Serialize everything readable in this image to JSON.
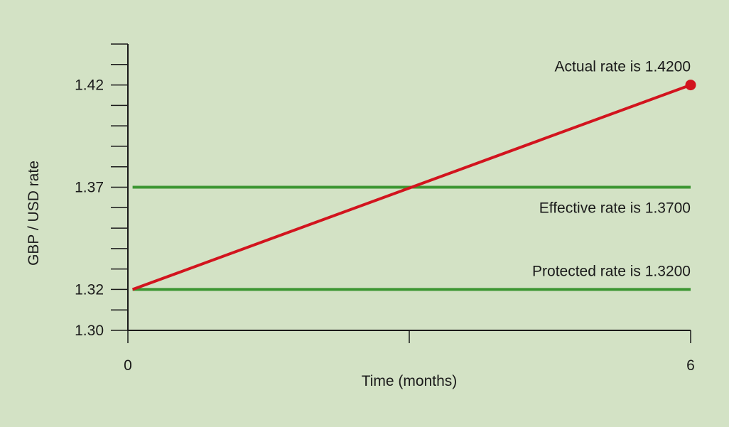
{
  "chart_data": {
    "type": "line",
    "title": "",
    "xlabel": "Time  (months)",
    "ylabel": "GBP / USD rate",
    "xlim": [
      0,
      6
    ],
    "ylim": [
      1.3,
      1.44
    ],
    "x_ticks": [
      0,
      3,
      6
    ],
    "x_tick_labels": [
      "0",
      "",
      "6"
    ],
    "y_minor_ticks": [
      1.3,
      1.31,
      1.32,
      1.33,
      1.34,
      1.35,
      1.36,
      1.37,
      1.38,
      1.39,
      1.4,
      1.41,
      1.42,
      1.43,
      1.44
    ],
    "y_tick_labels": [
      {
        "value": 1.3,
        "label": "1.30"
      },
      {
        "value": 1.32,
        "label": "1.32"
      },
      {
        "value": 1.37,
        "label": "1.37"
      },
      {
        "value": 1.42,
        "label": "1.42"
      }
    ],
    "grid": false,
    "series": [
      {
        "name": "",
        "color": "#d2141e",
        "x": [
          0.05,
          6
        ],
        "y": [
          1.32,
          1.42
        ],
        "end_marker": true
      },
      {
        "name": "",
        "color": "#3c9632",
        "x": [
          0.05,
          6
        ],
        "y": [
          1.37,
          1.37
        ]
      },
      {
        "name": "",
        "color": "#3c9632",
        "x": [
          0.05,
          6
        ],
        "y": [
          1.32,
          1.32
        ]
      }
    ],
    "annotations": [
      {
        "text": "Actual rate is 1.4200",
        "x": 6,
        "y": 1.42,
        "position": "above-left"
      },
      {
        "text": "Effective rate is 1.3700",
        "x": 6,
        "y": 1.37,
        "position": "below-left"
      },
      {
        "text": "Protected rate is 1.3200",
        "x": 6,
        "y": 1.32,
        "position": "above-left"
      }
    ],
    "colors": {
      "background": "#d3e2c5",
      "axis": "#1a1a1a",
      "actual_line": "#d2141e",
      "rate_lines": "#3c9632"
    }
  }
}
